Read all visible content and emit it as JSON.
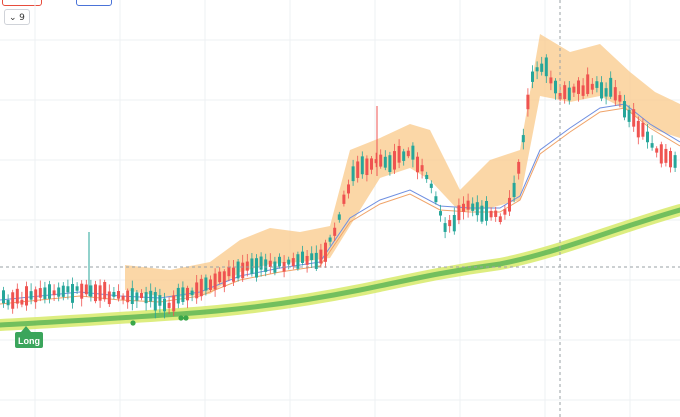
{
  "toolbar": {
    "interval_value": "9",
    "interval_icon": "chevron-down-icon"
  },
  "signal": {
    "label": "Long",
    "color": "#3ba55c"
  },
  "colors": {
    "up": "#26a69a",
    "down": "#ef5350",
    "band": "#f9c98a",
    "ema_fast": "#6f8fe0",
    "ema_slow": "#f0a46a",
    "trend_light": "#d7ea6a",
    "trend_dark": "#3aa64a",
    "dot": "#3aa64a",
    "grid": "#eef0f3",
    "crosshair": "#9aa0a6"
  },
  "chart_data": {
    "type": "candlestick",
    "grid": true,
    "candles": [
      [
        40,
        40,
        60,
        60
      ],
      [
        42,
        42,
        62,
        65
      ],
      [
        45,
        45,
        68,
        70
      ],
      [
        48,
        48,
        74,
        76
      ],
      [
        50,
        50,
        68,
        70
      ],
      [
        46,
        46,
        60,
        62
      ],
      [
        52,
        52,
        72,
        76
      ],
      [
        58,
        58,
        80,
        82
      ],
      [
        65,
        65,
        88,
        90
      ],
      [
        70,
        70,
        96,
        98
      ],
      [
        74,
        74,
        92,
        94
      ],
      [
        66,
        66,
        84,
        86
      ],
      [
        80,
        80,
        110,
        112
      ],
      [
        104,
        104,
        122,
        124
      ],
      [
        98,
        98,
        126,
        128
      ],
      [
        110,
        110,
        126,
        130
      ],
      [
        104,
        104,
        122,
        124
      ],
      [
        96,
        96,
        114,
        118
      ],
      [
        90,
        90,
        106,
        108
      ],
      [
        94,
        94,
        118,
        122
      ],
      [
        102,
        102,
        124,
        128
      ],
      [
        110,
        110,
        124,
        126
      ],
      [
        104,
        104,
        120,
        122
      ],
      [
        98,
        98,
        114,
        116
      ],
      [
        92,
        92,
        108,
        110
      ],
      [
        100,
        100,
        118,
        120
      ],
      [
        108,
        108,
        124,
        126
      ],
      [
        112,
        112,
        124,
        128
      ],
      [
        104,
        104,
        122,
        124
      ],
      [
        98,
        98,
        112,
        114
      ]
    ]
  }
}
